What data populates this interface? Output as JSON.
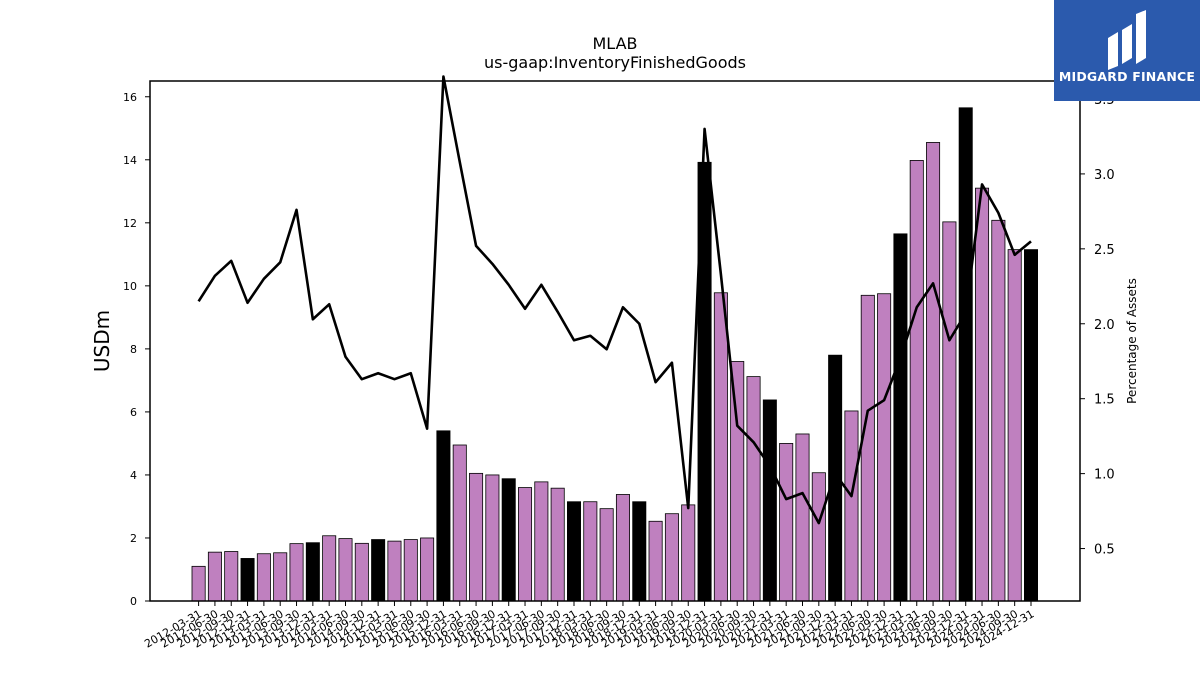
{
  "chart_data": {
    "type": "bar",
    "title": "MLAB",
    "subtitle": "us-gaap:InventoryFinishedGoods",
    "ylabel": "USDm",
    "y2label": "Percentage of Assets",
    "ylim": [
      0,
      16.5
    ],
    "y2lim": [
      0.15,
      3.62
    ],
    "yticks": [
      0,
      2,
      4,
      6,
      8,
      10,
      12,
      14,
      16
    ],
    "y2ticks": [
      0.5,
      1.0,
      1.5,
      2.0,
      2.5,
      3.0,
      3.5
    ],
    "grid": false,
    "colors": {
      "bar": "#bf80bf",
      "bar_highlight": "#000000",
      "line": "#000000"
    },
    "categories": [
      "2012-03-31",
      "2012-06-30",
      "2012-09-30",
      "2012-12-31",
      "2013-03-31",
      "2013-06-30",
      "2013-09-30",
      "2013-12-31",
      "2014-03-31",
      "2014-06-30",
      "2014-09-30",
      "2014-12-31",
      "2015-03-31",
      "2015-06-30",
      "2015-09-30",
      "2015-12-31",
      "2016-03-31",
      "2016-06-30",
      "2016-09-30",
      "2016-12-31",
      "2017-03-31",
      "2017-06-30",
      "2017-09-30",
      "2017-12-31",
      "2018-03-31",
      "2018-06-30",
      "2018-09-30",
      "2018-12-31",
      "2019-03-31",
      "2019-06-30",
      "2019-09-30",
      "2019-12-31",
      "2020-03-31",
      "2020-06-30",
      "2020-09-30",
      "2020-12-31",
      "2021-03-31",
      "2021-06-30",
      "2021-09-30",
      "2021-12-31",
      "2022-03-31",
      "2022-06-30",
      "2022-09-30",
      "2022-12-31",
      "2023-03-31",
      "2023-06-30",
      "2023-09-30",
      "2023-12-31",
      "2024-03-31",
      "2024-06-30",
      "2024-09-30",
      "2024-12-31"
    ],
    "series": [
      {
        "kind": "bar",
        "values": [
          1.1,
          1.55,
          1.57,
          1.35,
          1.5,
          1.53,
          1.82,
          1.85,
          2.07,
          1.98,
          1.83,
          1.95,
          1.9,
          1.95,
          2.0,
          5.4,
          4.95,
          4.05,
          4.0,
          3.88,
          3.6,
          3.78,
          3.58,
          3.15,
          3.15,
          2.93,
          3.38,
          3.15,
          2.53,
          2.77,
          3.05,
          13.92,
          9.78,
          7.6,
          7.12,
          6.38,
          5.0,
          5.3,
          4.07,
          7.8,
          6.03,
          9.7,
          9.75,
          11.65,
          13.98,
          14.55,
          12.03,
          15.65,
          13.1,
          12.08,
          11.15,
          11.15
        ],
        "highlight": [
          false,
          false,
          false,
          true,
          false,
          false,
          false,
          true,
          false,
          false,
          false,
          true,
          false,
          false,
          false,
          true,
          false,
          false,
          false,
          true,
          false,
          false,
          false,
          true,
          false,
          false,
          false,
          true,
          false,
          false,
          false,
          true,
          false,
          false,
          false,
          true,
          false,
          false,
          false,
          true,
          false,
          false,
          false,
          true,
          false,
          false,
          false,
          true,
          false,
          false,
          false,
          true
        ]
      },
      {
        "kind": "line",
        "axis": "right",
        "values": [
          2.15,
          2.32,
          2.42,
          2.14,
          2.3,
          2.41,
          2.76,
          2.03,
          2.13,
          1.78,
          1.63,
          1.67,
          1.63,
          1.67,
          1.3,
          3.65,
          3.08,
          2.52,
          2.4,
          2.26,
          2.1,
          2.26,
          2.08,
          1.89,
          1.92,
          1.83,
          2.11,
          2.0,
          1.61,
          1.74,
          0.77,
          3.3,
          2.33,
          1.32,
          1.21,
          1.05,
          0.83,
          0.87,
          0.67,
          1.0,
          0.85,
          1.42,
          1.49,
          1.77,
          2.11,
          2.27,
          1.89,
          2.07,
          2.93,
          2.74,
          2.46,
          2.55
        ]
      }
    ]
  },
  "watermark": {
    "text": "MIDGARD FINANCE",
    "color": "#2b5aad"
  }
}
